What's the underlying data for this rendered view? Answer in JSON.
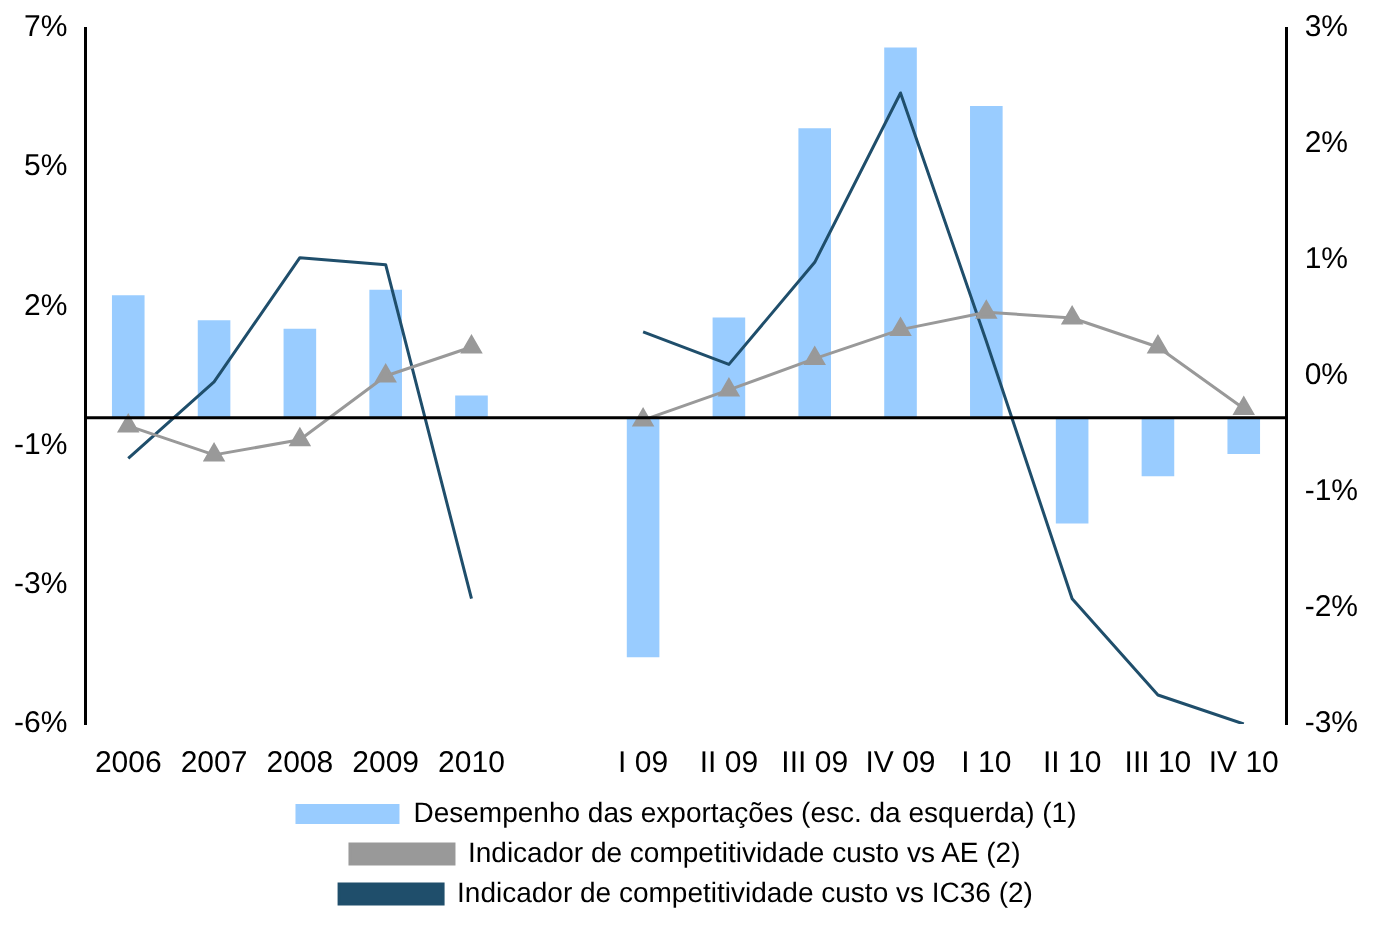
{
  "chart_data": {
    "type": "bar",
    "categories": [
      "2006",
      "2007",
      "2008",
      "2009",
      "2010",
      null,
      "I 09",
      "II 09",
      "III 09",
      "IV 09",
      "I 10",
      "II 10",
      "III 10",
      "IV 10"
    ],
    "series": [
      {
        "name": "Desempenho das exportações (esc. da esquerda) (1)",
        "color": "#99ccff",
        "values": [
          2.2,
          1.75,
          1.6,
          2.3,
          0.4,
          null,
          -4.3,
          1.8,
          5.2,
          6.65,
          5.6,
          -1.9,
          -1.05,
          -0.65
        ]
      },
      {
        "name": "Indicador de competitividade custo vs AE (2)",
        "type": "line",
        "axis": "y2",
        "color": "#999999",
        "marker": "triangle",
        "values": [
          -0.43,
          -0.68,
          -0.55,
          0,
          0.25,
          null,
          -0.38,
          -0.12,
          0.15,
          0.4,
          0.55,
          0.5,
          0.25,
          -0.28
        ]
      },
      {
        "name": "Indicador de competitividade custo vs IC36 (2)",
        "type": "line",
        "axis": "y2",
        "color": "#1f4e6b",
        "marker": "none",
        "values": [
          -0.71,
          -0.05,
          1.02,
          0.96,
          -1.92,
          null,
          0.38,
          0.1,
          0.98,
          2.44,
          0.3,
          -1.92,
          -2.75,
          -3
        ]
      }
    ],
    "ylim": [
      -5.5,
      7
    ],
    "yticks": [
      {
        "value": -5.5,
        "label": "-6%"
      },
      {
        "value": -3,
        "label": "-3%"
      },
      {
        "value": -0.5,
        "label": "-1%"
      },
      {
        "value": 2,
        "label": "2%"
      },
      {
        "value": 4.5,
        "label": "5%"
      },
      {
        "value": 7,
        "label": "7%"
      }
    ],
    "y2lim": [
      -3,
      3
    ],
    "y2ticks": [
      {
        "value": -3,
        "label": "-3%"
      },
      {
        "value": -2,
        "label": "-2%"
      },
      {
        "value": -1,
        "label": "-1%"
      },
      {
        "value": 0,
        "label": "0%"
      },
      {
        "value": 1,
        "label": "1%"
      },
      {
        "value": 2,
        "label": "2%"
      },
      {
        "value": 3,
        "label": "3%"
      }
    ],
    "ref_lines": [
      {
        "axis": "y",
        "value": 0,
        "color": "#000000"
      }
    ],
    "grid": false,
    "legend": "bottom"
  }
}
